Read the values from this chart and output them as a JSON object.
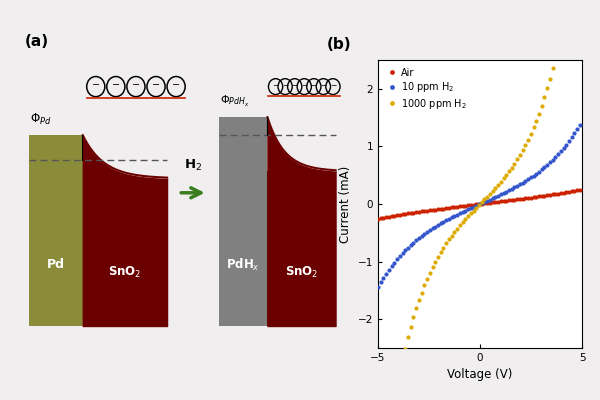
{
  "bg_color": "#f0eeee",
  "pd_color": "#8b8c3a",
  "pdHx_color": "#808080",
  "sno2_color": "#6b0000",
  "arrow_color": "#3a7d1e",
  "label_a": "(a)",
  "label_b": "(b)",
  "pd_text": "Pd",
  "pdhx_text": "PdH$_x$",
  "sno2_text": "SnO$_2$",
  "h2_text": "H$_2$",
  "xlabel": "Voltage (V)",
  "ylabel": "Current (mA)",
  "legend_air": "Air",
  "legend_10ppm": "10 ppm H$_2$",
  "legend_1000ppm": "1000 ppm H$_2$",
  "color_air": "#cc2200",
  "color_10ppm": "#3355cc",
  "color_1000ppm": "#ddaa00",
  "xlim": [
    -5,
    5
  ],
  "ylim": [
    -2.5,
    2.5
  ],
  "xticks": [
    -5,
    0,
    5
  ],
  "yticks": [
    -2,
    -1,
    0,
    1,
    2
  ]
}
